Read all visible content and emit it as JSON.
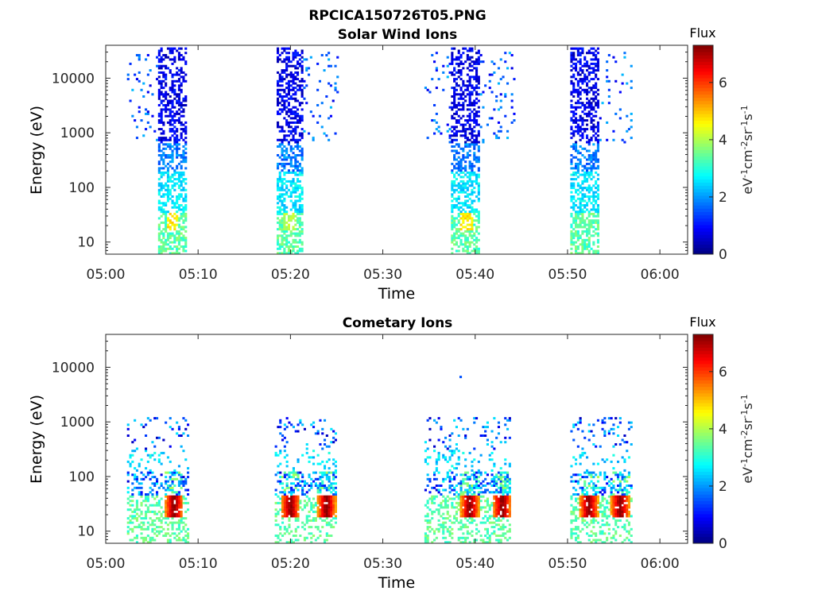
{
  "figure_title": "RPCICA150726T05.PNG",
  "colorbar_title": "Flux",
  "colorbar_label": "eV-1cm-2sr-1s-1",
  "colormap": [
    "#00007f",
    "#0000ff",
    "#007fff",
    "#00ffff",
    "#7fff7f",
    "#ffff00",
    "#ff7f00",
    "#ff0000",
    "#7f0000"
  ],
  "chart_data": [
    {
      "type": "heatmap",
      "title": "Solar Wind Ions",
      "xlabel": "Time",
      "ylabel": "Energy (eV)",
      "x_ticks": [
        "05:00",
        "05:10",
        "05:20",
        "05:30",
        "05:40",
        "05:50",
        "06:00"
      ],
      "xlim_minutes": [
        0,
        63
      ],
      "y_scale": "log",
      "y_ticks": [
        10,
        100,
        1000,
        10000
      ],
      "y_tick_labels": [
        "10",
        "100",
        "1000",
        "10000"
      ],
      "ylim": [
        6,
        40000
      ],
      "colorbar": {
        "range": [
          0,
          7.3
        ],
        "ticks": [
          0,
          2,
          4,
          6
        ]
      },
      "bursts": [
        {
          "t_start": 5.5,
          "t_end": 8.7,
          "sparse_start": 2.3,
          "sparse_end": 5.5,
          "peak_flux": 5.0,
          "peak_energy": 22
        },
        {
          "t_start": 18.5,
          "t_end": 21.2,
          "sparse_start": 21.2,
          "sparse_end": 25.0,
          "peak_flux": 4.3,
          "peak_energy": 20
        },
        {
          "t_start": 37.2,
          "t_end": 40.5,
          "sparse_start": 34.5,
          "sparse_end": 44.2,
          "peak_flux": 5.0,
          "peak_energy": 25
        },
        {
          "t_start": 50.3,
          "t_end": 53.4,
          "sparse_start": 53.4,
          "sparse_end": 56.8,
          "peak_flux": 3.8,
          "peak_energy": 20
        }
      ]
    },
    {
      "type": "heatmap",
      "title": "Cometary Ions",
      "xlabel": "Time",
      "ylabel": "Energy (eV)",
      "x_ticks": [
        "05:00",
        "05:10",
        "05:20",
        "05:30",
        "05:40",
        "05:50",
        "06:00"
      ],
      "xlim_minutes": [
        0,
        63
      ],
      "y_scale": "log",
      "y_ticks": [
        10,
        100,
        1000,
        10000
      ],
      "y_tick_labels": [
        "10",
        "100",
        "1000",
        "10000"
      ],
      "ylim": [
        6,
        40000
      ],
      "colorbar": {
        "range": [
          0,
          7.3
        ],
        "ticks": [
          0,
          2,
          4,
          6
        ]
      },
      "bursts": [
        {
          "t_start": 2.3,
          "t_end": 8.8,
          "peak_times": [
            7.3
          ],
          "peak_flux": 7.0,
          "peak_energy": 22
        },
        {
          "t_start": 18.3,
          "t_end": 24.8,
          "peak_times": [
            19.9,
            23.8
          ],
          "peak_flux": 7.0,
          "peak_energy": 25
        },
        {
          "t_start": 34.5,
          "t_end": 43.8,
          "peak_times": [
            39.3,
            42.8
          ],
          "peak_flux": 7.0,
          "peak_energy": 25
        },
        {
          "t_start": 50.3,
          "t_end": 56.8,
          "peak_times": [
            52.2,
            55.6
          ],
          "peak_flux": 7.0,
          "peak_energy": 22
        }
      ],
      "isolated_points": [
        {
          "t": 38.3,
          "energy": 6500,
          "flux": 1.5
        }
      ]
    }
  ]
}
